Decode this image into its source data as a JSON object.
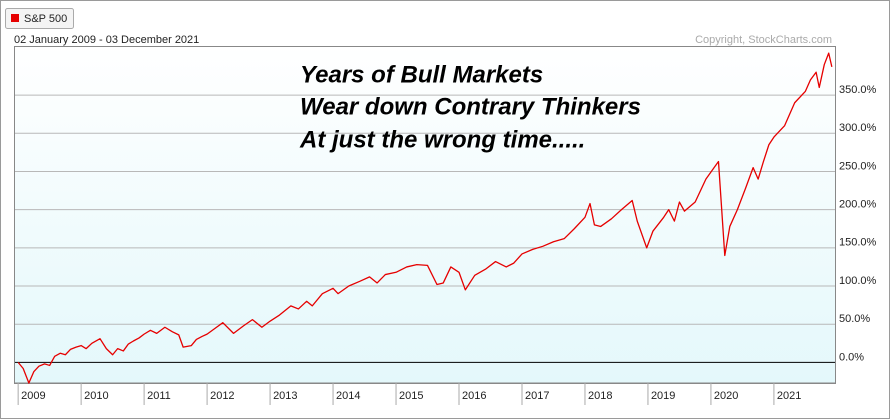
{
  "chart_data": {
    "type": "line",
    "subtitle": "02 January 2009 - 03 December 2021",
    "credit": "Copyright, StockCharts.com",
    "annotations": [
      "Years of Bull Markets",
      "Wear down Contrary Thinkers",
      "At just the wrong time....."
    ],
    "x": [
      2009.0,
      2009.08,
      2009.17,
      2009.25,
      2009.33,
      2009.42,
      2009.5,
      2009.58,
      2009.67,
      2009.75,
      2009.83,
      2009.92,
      2010.0,
      2010.08,
      2010.17,
      2010.3,
      2010.4,
      2010.5,
      2010.58,
      2010.67,
      2010.75,
      2010.83,
      2010.92,
      2011.0,
      2011.1,
      2011.2,
      2011.33,
      2011.45,
      2011.55,
      2011.62,
      2011.75,
      2011.83,
      2011.92,
      2012.0,
      2012.15,
      2012.25,
      2012.42,
      2012.58,
      2012.72,
      2012.87,
      2013.0,
      2013.15,
      2013.33,
      2013.45,
      2013.58,
      2013.67,
      2013.83,
      2014.0,
      2014.08,
      2014.25,
      2014.42,
      2014.58,
      2014.7,
      2014.83,
      2015.0,
      2015.17,
      2015.33,
      2015.5,
      2015.65,
      2015.75,
      2015.87,
      2016.0,
      2016.1,
      2016.25,
      2016.42,
      2016.58,
      2016.75,
      2016.87,
      2017.0,
      2017.17,
      2017.33,
      2017.5,
      2017.67,
      2017.83,
      2018.0,
      2018.08,
      2018.15,
      2018.25,
      2018.42,
      2018.58,
      2018.75,
      2018.83,
      2018.98,
      2019.08,
      2019.25,
      2019.33,
      2019.42,
      2019.5,
      2019.58,
      2019.75,
      2019.92,
      2020.05,
      2020.12,
      2020.22,
      2020.3,
      2020.42,
      2020.55,
      2020.67,
      2020.75,
      2020.83,
      2020.92,
      2021.0,
      2021.17,
      2021.33,
      2021.5,
      2021.58,
      2021.67,
      2021.72,
      2021.8,
      2021.87,
      2021.92
    ],
    "series": [
      {
        "name": "S&P 500",
        "color": "#e60000",
        "values": [
          0,
          -8,
          -27,
          -12,
          -5,
          -2,
          -4,
          8,
          12,
          10,
          17,
          20,
          22,
          18,
          25,
          31,
          18,
          10,
          18,
          15,
          24,
          28,
          32,
          37,
          42,
          38,
          46,
          40,
          36,
          20,
          22,
          30,
          34,
          37,
          46,
          52,
          38,
          48,
          56,
          46,
          54,
          62,
          74,
          70,
          80,
          74,
          90,
          97,
          90,
          100,
          106,
          112,
          104,
          115,
          118,
          125,
          128,
          127,
          102,
          104,
          125,
          118,
          95,
          114,
          122,
          132,
          125,
          130,
          142,
          148,
          152,
          158,
          162,
          175,
          190,
          208,
          180,
          178,
          188,
          200,
          212,
          185,
          150,
          172,
          190,
          200,
          185,
          210,
          198,
          210,
          240,
          255,
          263,
          140,
          178,
          200,
          228,
          255,
          240,
          262,
          285,
          295,
          310,
          340,
          355,
          370,
          380,
          360,
          390,
          405,
          387
        ]
      }
    ],
    "xlim": [
      2008.95,
      2021.97
    ],
    "xticks": [
      2009,
      2010,
      2011,
      2012,
      2013,
      2014,
      2015,
      2016,
      2017,
      2018,
      2019,
      2020,
      2021
    ],
    "ylim": [
      -27,
      413
    ],
    "yticks": [
      {
        "value": 0,
        "label": "0.0%"
      },
      {
        "value": 50,
        "label": "50.0%"
      },
      {
        "value": 100,
        "label": "100.0%"
      },
      {
        "value": 150,
        "label": "150.0%"
      },
      {
        "value": 200,
        "label": "200.0%"
      },
      {
        "value": 250,
        "label": "250.0%"
      },
      {
        "value": 300,
        "label": "300.0%"
      },
      {
        "value": 350,
        "label": "350.0%"
      }
    ],
    "grid": true
  }
}
